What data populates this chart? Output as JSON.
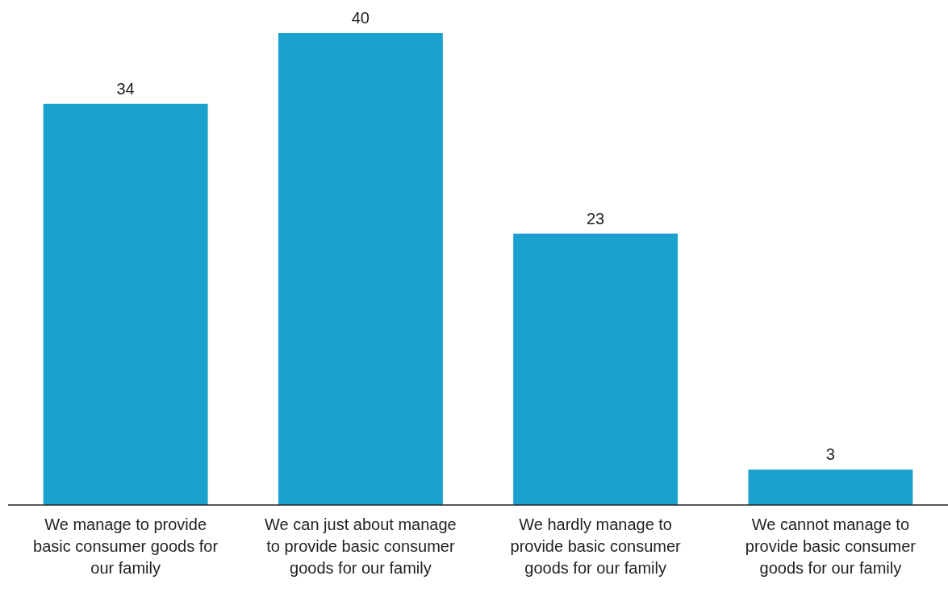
{
  "chart_data": {
    "type": "bar",
    "categories": [
      "We manage to provide basic consumer goods for our family",
      "We can just about manage to provide basic consumer goods for our family",
      "We hardly manage to provide basic consumer goods for our family",
      "We cannot manage to provide basic consumer goods for our family"
    ],
    "values": [
      34,
      40,
      23,
      3
    ],
    "color": "#1ba1ce",
    "data_labels": true
  }
}
